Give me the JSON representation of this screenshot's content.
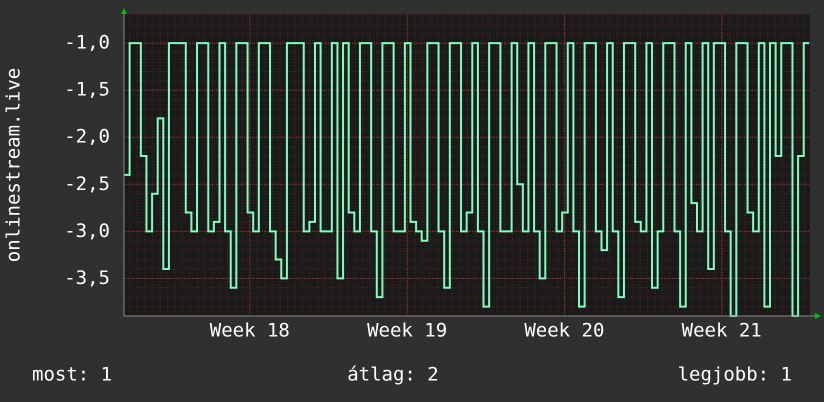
{
  "chart_data": {
    "type": "line",
    "ylabel": "onlinestream.live",
    "x": [
      0,
      0.25,
      0.5,
      0.75,
      1,
      1.25,
      1.5,
      1.75,
      2,
      2.25,
      2.5,
      2.75,
      3,
      3.25,
      3.5,
      3.75,
      4,
      4.25,
      4.5,
      4.75,
      5,
      5.25,
      5.5,
      5.75,
      6,
      6.25,
      6.5,
      6.75,
      7,
      7.25,
      7.5,
      7.75,
      8,
      8.25,
      8.5,
      8.75,
      9,
      9.25,
      9.5,
      9.75,
      10,
      10.25,
      10.5,
      10.75,
      11,
      11.25,
      11.5,
      11.75,
      12,
      12.25,
      12.5,
      12.75,
      13,
      13.25,
      13.5,
      13.75,
      14,
      14.25,
      14.5,
      14.75,
      15,
      15.25,
      15.5,
      15.75,
      16,
      16.25,
      16.5,
      16.75,
      17,
      17.25,
      17.5,
      17.75,
      18,
      18.25,
      18.5,
      18.75,
      19,
      19.25,
      19.5,
      19.75,
      20,
      20.25,
      20.5,
      20.75,
      21,
      21.25,
      21.5,
      21.75,
      22,
      22.25,
      22.5,
      22.75,
      23,
      23.25,
      23.5,
      23.75,
      24,
      24.25,
      24.5,
      24.75,
      25,
      25.25,
      25.5,
      25.75,
      26,
      26.25,
      26.5,
      26.75,
      27,
      27.25,
      27.5,
      27.75,
      28,
      28.25,
      28.5,
      28.75,
      29,
      29.25,
      29.5,
      29.75,
      30,
      30.25,
      30.5
    ],
    "series": [
      {
        "color": "#7fffbf",
        "values": [
          -2.4,
          -1,
          -1,
          -2.2,
          -3,
          -2.6,
          -1.8,
          -3.4,
          -1,
          -1,
          -1,
          -2.8,
          -3,
          -1,
          -1,
          -3,
          -2.9,
          -1,
          -3,
          -3.6,
          -1,
          -1,
          -2.8,
          -3,
          -1,
          -1,
          -3,
          -3.3,
          -3.5,
          -1,
          -1,
          -1,
          -3,
          -2.9,
          -1,
          -3,
          -3,
          -1,
          -3.5,
          -1,
          -2.8,
          -3,
          -1,
          -1,
          -3,
          -3.7,
          -1,
          -1,
          -3,
          -3,
          -1,
          -2.9,
          -3,
          -3.1,
          -1,
          -1,
          -3,
          -3.6,
          -1,
          -1,
          -3,
          -2.8,
          -1,
          -3,
          -3.8,
          -1,
          -1,
          -3,
          -3,
          -1,
          -2.5,
          -3,
          -1,
          -3,
          -3.5,
          -1,
          -1,
          -3,
          -2.8,
          -1,
          -3,
          -3.8,
          -1,
          -1,
          -3,
          -3.2,
          -1,
          -3,
          -3.7,
          -1,
          -1,
          -2.9,
          -3,
          -1,
          -3.6,
          -3,
          -1,
          -1,
          -3,
          -3.8,
          -1,
          -2.7,
          -3,
          -1,
          -3.4,
          -1,
          -1,
          -3,
          -3.9,
          -1,
          -1,
          -2.8,
          -3,
          -1,
          -3.8,
          -1,
          -2.2,
          -1,
          -1,
          -3.9,
          -2.2,
          -1,
          -1
        ]
      }
    ],
    "xlim": [
      0,
      30.53
    ],
    "ylim": [
      -3.9,
      -0.69
    ],
    "xticks": [
      {
        "value": 5.6,
        "label": "Week 18"
      },
      {
        "value": 12.6,
        "label": "Week 19"
      },
      {
        "value": 19.6,
        "label": "Week 20"
      },
      {
        "value": 26.6,
        "label": "Week 21"
      }
    ],
    "yticks": [
      {
        "value": -1.0,
        "label": "-1,0"
      },
      {
        "value": -1.5,
        "label": "-1,5"
      },
      {
        "value": -2.0,
        "label": "-2,0"
      },
      {
        "value": -2.5,
        "label": "-2,5"
      },
      {
        "value": -3.0,
        "label": "-3,0"
      },
      {
        "value": -3.5,
        "label": "-3,5"
      }
    ],
    "grid": true,
    "summary": [
      "most: 1",
      "átlag: 2",
      "legjobb: 1"
    ]
  }
}
